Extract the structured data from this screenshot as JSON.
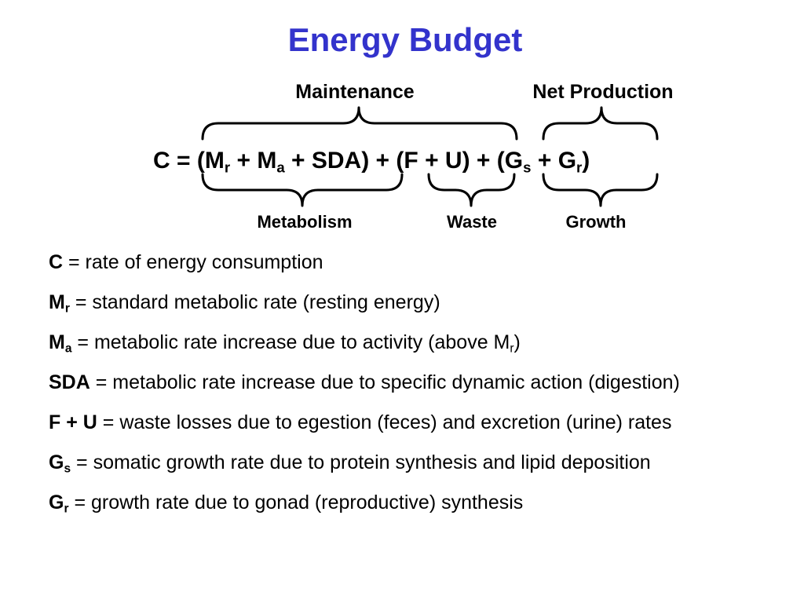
{
  "title": "Energy Budget",
  "braces": {
    "maintenance": "Maintenance",
    "net_production": "Net Production",
    "metabolism": "Metabolism",
    "waste": "Waste",
    "growth": "Growth"
  },
  "equation": {
    "lhs": "C",
    "eq": " = ",
    "open1": "(",
    "mr_base": "M",
    "mr_sub": "r",
    "plus1": " + ",
    "ma_base": "M",
    "ma_sub": "a",
    "plus2": " + ",
    "sda": "SDA",
    "close1": ")",
    "plus3": " + ",
    "fu": "(F + U)",
    "plus4": " + ",
    "open3": "(",
    "gs_base": "G",
    "gs_sub": "s",
    "plus5": " + ",
    "gr_base": "G",
    "gr_sub": "r",
    "close3": ")"
  },
  "definitions": [
    {
      "term": "C",
      "sub": "",
      "text": " = rate of energy consumption",
      "tail_sub": "",
      "tail_end": ""
    },
    {
      "term": "M",
      "sub": "r",
      "text": " = standard metabolic rate (resting energy)",
      "tail_sub": "",
      "tail_end": ""
    },
    {
      "term": "M",
      "sub": "a",
      "text": " = metabolic rate increase due to activity (above M",
      "tail_sub": "r",
      "tail_end": ")"
    },
    {
      "term": "SDA",
      "sub": "",
      "text": " = metabolic rate increase due to specific dynamic action (digestion)",
      "tail_sub": "",
      "tail_end": ""
    },
    {
      "term": "F + U",
      "sub": "",
      "text": " = waste losses due to egestion (feces) and excretion (urine) rates",
      "tail_sub": "",
      "tail_end": ""
    },
    {
      "term": "G",
      "sub": "s",
      "text": " = somatic growth rate due to protein synthesis and lipid deposition",
      "tail_sub": "",
      "tail_end": ""
    },
    {
      "term": "G",
      "sub": "r",
      "text": " = growth rate due to gonad (reproductive) synthesis",
      "tail_sub": "",
      "tail_end": ""
    }
  ]
}
